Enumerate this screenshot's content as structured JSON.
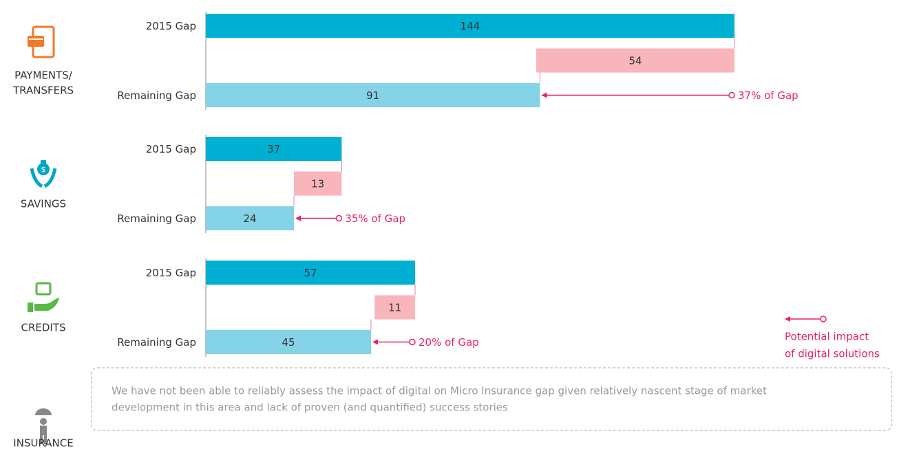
{
  "chart_data": [
    {
      "type": "waterfall",
      "title": [
        "PAYMENTS/",
        "TRANSFERS"
      ],
      "categories": [
        "2015 Gap",
        null,
        "Remaining Gap"
      ],
      "values": [
        144,
        54,
        91
      ],
      "colors": [
        "#00b0d3",
        "#f8b5bb",
        "#84d3e6"
      ],
      "annotation": "37% of Gap"
    },
    {
      "type": "waterfall",
      "title": [
        "SAVINGS"
      ],
      "categories": [
        "2015 Gap",
        null,
        "Remaining Gap"
      ],
      "values": [
        37,
        13,
        24
      ],
      "colors": [
        "#00b0d3",
        "#f8b5bb",
        "#84d3e6"
      ],
      "annotation": "35% of Gap"
    },
    {
      "type": "waterfall",
      "title": [
        "CREDITS"
      ],
      "categories": [
        "2015 Gap",
        null,
        "Remaining Gap"
      ],
      "values": [
        57,
        11,
        45
      ],
      "colors": [
        "#00b0d3",
        "#f8b5bb",
        "#84d3e6"
      ],
      "annotation": "20% of Gap"
    }
  ],
  "insurance": {
    "title": "INSURANCE",
    "note": [
      "We have not been able to reliably assess the impact of digital on Micro Insurance gap given relatively nascent stage of market",
      "development in this area and lack of proven (and quantified) success stories"
    ]
  },
  "legend": {
    "text": [
      "Potential impact",
      "of digital solutions"
    ],
    "color": "#e5206f"
  }
}
